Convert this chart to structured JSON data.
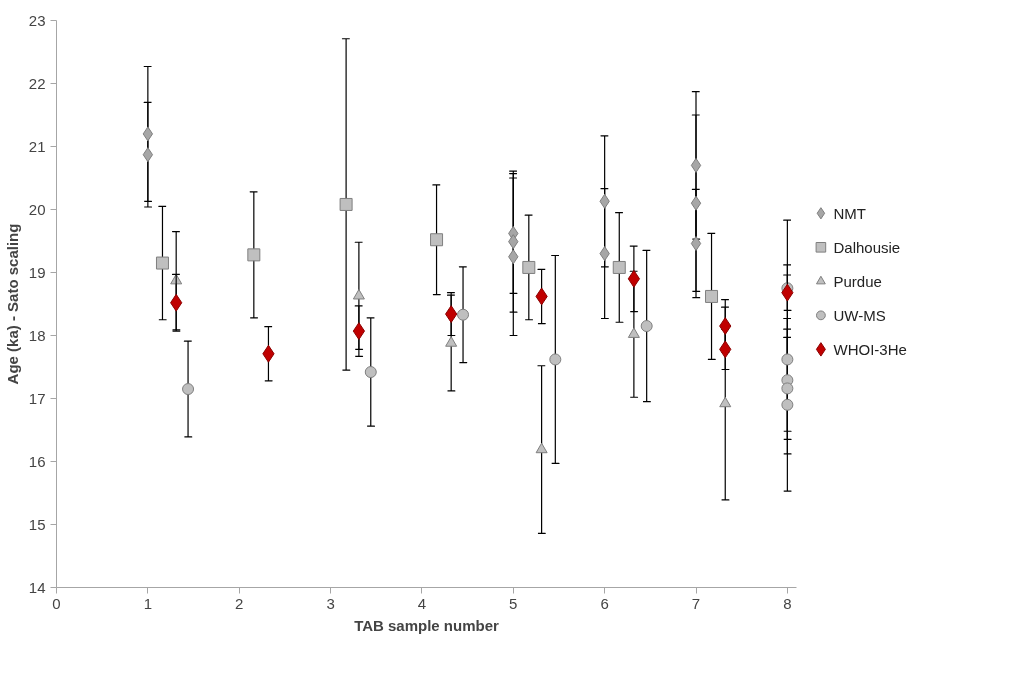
{
  "chart_data": {
    "type": "scatter",
    "xlabel": "TAB sample number",
    "ylabel": "Age (ka) - Sato scaling",
    "xlim": [
      0,
      8.1
    ],
    "ylim": [
      14,
      23
    ],
    "xticks": [
      0,
      1,
      2,
      3,
      4,
      5,
      6,
      7,
      8
    ],
    "yticks": [
      14,
      15,
      16,
      17,
      18,
      19,
      20,
      21,
      22,
      23
    ],
    "grid": false,
    "legend": "right",
    "series": [
      {
        "name": "NMT",
        "color": "#a6a6a6",
        "marker": "diamond",
        "x": [
          1,
          1,
          5,
          5,
          5,
          6,
          6,
          7,
          7,
          7
        ],
        "values": [
          21.2,
          20.87,
          19.62,
          19.49,
          19.25,
          20.13,
          19.3,
          20.7,
          20.1,
          19.46
        ],
        "errors": [
          1.07,
          0.83,
          0.95,
          1.12,
          1.25,
          1.04,
          1.03,
          1.17,
          1.4,
          0.86
        ]
      },
      {
        "name": "Dalhousie",
        "color": "#bfbfbf",
        "marker": "square",
        "x": [
          1.16,
          2.16,
          3.17,
          4.16,
          5.17,
          6.16,
          7.17
        ],
        "values": [
          19.15,
          19.28,
          20.08,
          19.52,
          19.08,
          19.08,
          18.62
        ],
        "errors": [
          0.9,
          1.0,
          2.63,
          0.87,
          0.83,
          0.87,
          1.0
        ]
      },
      {
        "name": "Purdue",
        "color": "#bfbfbf",
        "marker": "triangle",
        "x": [
          1.31,
          3.31,
          4.32,
          5.31,
          6.32,
          7.32
        ],
        "values": [
          18.87,
          18.63,
          17.88,
          16.19,
          18.02,
          16.92
        ],
        "errors": [
          0.78,
          0.85,
          0.76,
          1.33,
          1.0,
          1.53
        ]
      },
      {
        "name": "UW-MS",
        "color": "#bfbfbf",
        "marker": "circle",
        "x": [
          1.44,
          3.44,
          4.45,
          5.46,
          6.46,
          8,
          8,
          8,
          8,
          8
        ],
        "values": [
          17.15,
          17.42,
          18.33,
          17.62,
          18.15,
          18.75,
          17.62,
          17.29,
          17.16,
          16.9
        ],
        "errors": [
          0.76,
          0.86,
          0.76,
          1.65,
          1.2,
          1.08,
          1.5,
          0.81,
          0.81,
          1.37
        ]
      },
      {
        "name": "WHOI-3He",
        "color": "#c00000",
        "marker": "diamond",
        "x": [
          1.31,
          2.32,
          3.31,
          4.32,
          5.31,
          6.32,
          7.32,
          7.32,
          8
        ],
        "values": [
          18.52,
          17.71,
          18.07,
          18.34,
          18.62,
          18.9,
          18.15,
          17.78,
          18.68
        ],
        "errors": [
          0.45,
          0.43,
          0.4,
          0.34,
          0.43,
          0.52,
          0.42,
          0.32,
          0.28
        ]
      }
    ]
  }
}
